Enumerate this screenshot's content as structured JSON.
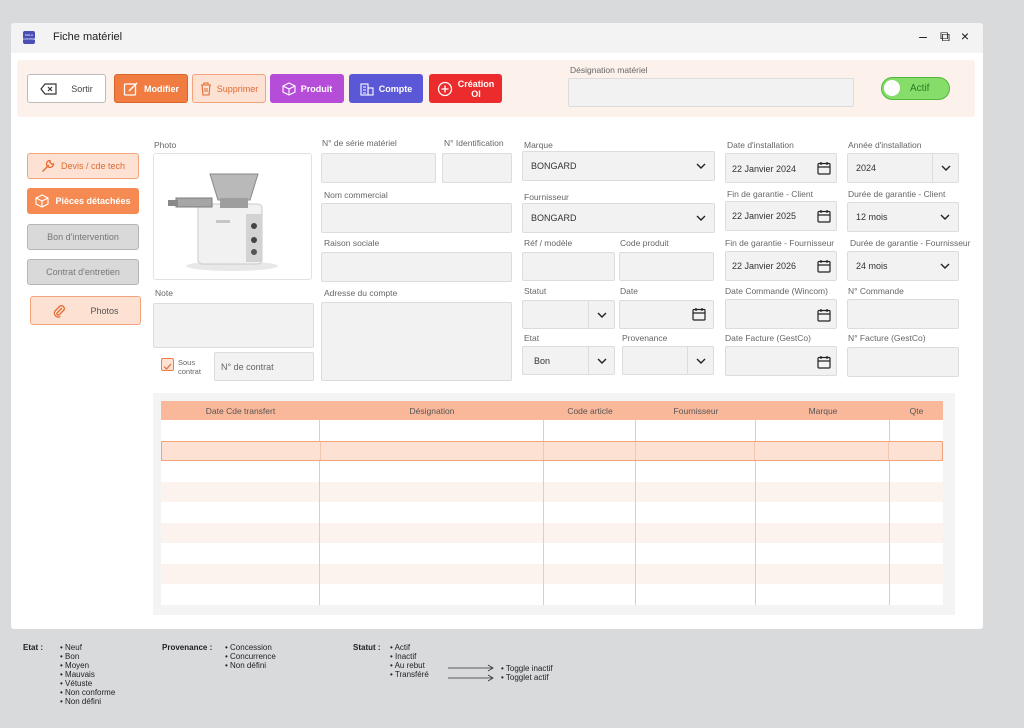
{
  "window": {
    "title": "Fiche matériel",
    "logo_text": "SOLU CONTRE",
    "minimize": "–",
    "restore": "⧉",
    "close": "×"
  },
  "toolbar": {
    "sortir": "Sortir",
    "modifier": "Modifier",
    "supprimer": "Supprimer",
    "produit": "Produit",
    "compte": "Compte",
    "creation_line1": "Création",
    "creation_line2": "OI",
    "designation_label": "Désignation matériel",
    "designation_value": "",
    "actif_label": "Actif"
  },
  "side": {
    "devis": "Devis / cde tech",
    "pieces": "Pièces détachées",
    "bon": "Bon d'intervention",
    "contrat": "Contrat d'entretien",
    "photos": "Photos"
  },
  "form": {
    "photo_label": "Photo",
    "note_label": "Note",
    "sous_contrat_line1": "Sous",
    "sous_contrat_line2": "contrat",
    "no_contrat_placeholder": "N° de contrat",
    "serie_label": "N° de série matériel",
    "ident_label": "N° Identification",
    "nom_commercial_label": "Nom commercial",
    "raison_sociale_label": "Raison sociale",
    "adresse_label": "Adresse du compte",
    "marque_label": "Marque",
    "marque_value": "BONGARD",
    "fournisseur_label": "Fournisseur",
    "fournisseur_value": "BONGARD",
    "ref_label": "Réf / modèle",
    "code_produit_label": "Code produit",
    "statut_label": "Statut",
    "date_label": "Date",
    "etat_label": "Etat",
    "etat_value": "Bon",
    "provenance_label": "Provenance",
    "date_install_label": "Date d'installation",
    "date_install_value": "22 Janvier 2024",
    "annee_install_label": "Année d'installation",
    "annee_install_value": "2024",
    "fin_garantie_client_label": "Fin de garantie - Client",
    "fin_garantie_client_value": "22 Janvier 2025",
    "duree_garantie_client_label": "Durée de garantie - Client",
    "duree_garantie_client_value": "12 mois",
    "fin_garantie_fourn_label": "Fin de garantie - Fournisseur",
    "fin_garantie_fourn_value": "22 Janvier 2026",
    "duree_garantie_fourn_label": "Durée de garantie - Fournisseur",
    "duree_garantie_fourn_value": "24 mois",
    "date_commande_label": "Date Commande (Wincom)",
    "no_commande_label": "N° Commande",
    "date_facture_label": "Date Facture (GestCo)",
    "no_facture_label": "N° Facture (GestCo)"
  },
  "table": {
    "columns": [
      "Date Cde transfert",
      "Désignation",
      "Code article",
      "Fournisseur",
      "Marque",
      "Qte"
    ]
  },
  "legend": {
    "etat_title": "Etat :",
    "etat_items": [
      "Neuf",
      "Bon",
      "Moyen",
      "Mauvais",
      "Vétuste",
      "Non conforme",
      "Non défini"
    ],
    "provenance_title": "Provenance :",
    "provenance_items": [
      "Concession",
      "Concurrence",
      "Non défini"
    ],
    "statut_title": "Statut :",
    "statut_items": [
      "Actif",
      "Inactif",
      "Au rebut",
      "Transféré"
    ],
    "toggle_inactif": "Toggle inactif",
    "toggle_actif": "Togglet actif"
  },
  "colors": {
    "accent": "#f07c42",
    "produit": "#b54dd8",
    "compte": "#5a58d6",
    "creation": "#ec2c2c",
    "actif": "#86dd6a"
  }
}
